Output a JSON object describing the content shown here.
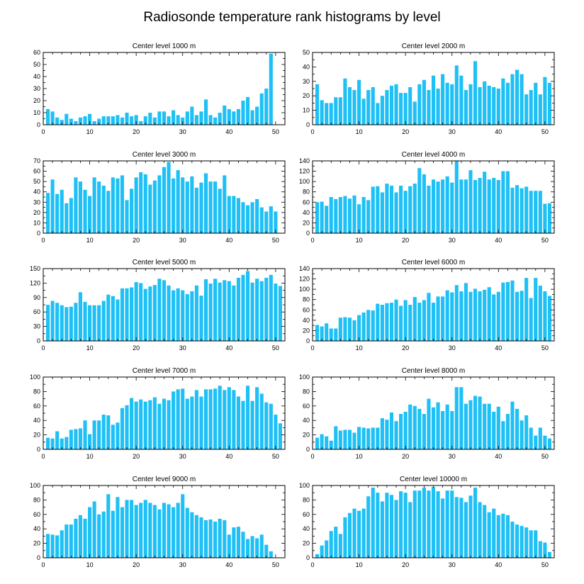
{
  "figure_title": "Radiosonde temperature rank histograms by level",
  "colors": {
    "bar": "#1ec0f5",
    "frame": "#000000"
  },
  "chart_data": [
    {
      "type": "bar",
      "title": "Center level 1000 m",
      "x_start": 1,
      "xlim": [
        0,
        52
      ],
      "xticks": [
        0,
        10,
        20,
        30,
        40,
        50
      ],
      "ylim": [
        0,
        60
      ],
      "yticks": [
        0,
        10,
        20,
        30,
        40,
        50,
        60
      ],
      "values": [
        13,
        11,
        6,
        4,
        9,
        5,
        3,
        6,
        7,
        9,
        3,
        5,
        7,
        7,
        7,
        8,
        6,
        10,
        7,
        8,
        3,
        7,
        10,
        6,
        11,
        11,
        7,
        12,
        8,
        6,
        11,
        15,
        8,
        11,
        21,
        8,
        6,
        10,
        16,
        13,
        11,
        13,
        20,
        23,
        12,
        15,
        26,
        30,
        59,
        0,
        0
      ]
    },
    {
      "type": "bar",
      "title": "Center level 2000 m",
      "x_start": 1,
      "xlim": [
        0,
        52
      ],
      "xticks": [
        0,
        10,
        20,
        30,
        40,
        50
      ],
      "ylim": [
        0,
        50
      ],
      "yticks": [
        0,
        10,
        20,
        30,
        40,
        50
      ],
      "values": [
        28,
        17,
        15,
        15,
        19,
        19,
        32,
        26,
        24,
        31,
        18,
        24,
        26,
        15,
        20,
        24,
        27,
        28,
        22,
        22,
        26,
        16,
        28,
        31,
        24,
        34,
        25,
        35,
        29,
        28,
        41,
        34,
        24,
        28,
        44,
        26,
        30,
        27,
        26,
        25,
        32,
        29,
        35,
        38,
        35,
        21,
        24,
        29,
        21,
        33,
        29
      ]
    },
    {
      "type": "bar",
      "title": "Center level 3000 m",
      "x_start": 1,
      "xlim": [
        0,
        52
      ],
      "xticks": [
        0,
        10,
        20,
        30,
        40,
        50
      ],
      "ylim": [
        0,
        70
      ],
      "yticks": [
        0,
        10,
        20,
        30,
        40,
        50,
        60,
        70
      ],
      "values": [
        39,
        52,
        38,
        42,
        29,
        34,
        54,
        50,
        42,
        36,
        54,
        50,
        46,
        41,
        54,
        53,
        56,
        32,
        43,
        54,
        59,
        57,
        47,
        51,
        56,
        64,
        69,
        53,
        61,
        54,
        50,
        55,
        44,
        49,
        58,
        50,
        50,
        43,
        56,
        36,
        36,
        34,
        30,
        27,
        30,
        33,
        25,
        21,
        26,
        21,
        0
      ]
    },
    {
      "type": "bar",
      "title": "Center level 4000 m",
      "x_start": 1,
      "xlim": [
        0,
        52
      ],
      "xticks": [
        0,
        10,
        20,
        30,
        40,
        50
      ],
      "ylim": [
        0,
        140
      ],
      "yticks": [
        0,
        20,
        40,
        60,
        80,
        100,
        120,
        140
      ],
      "values": [
        60,
        61,
        53,
        70,
        66,
        70,
        72,
        67,
        73,
        56,
        70,
        64,
        90,
        91,
        79,
        96,
        92,
        79,
        92,
        82,
        91,
        96,
        126,
        114,
        92,
        104,
        100,
        104,
        110,
        98,
        141,
        104,
        104,
        122,
        103,
        107,
        119,
        104,
        107,
        103,
        120,
        120,
        88,
        93,
        87,
        90,
        82,
        82,
        82,
        57,
        58
      ]
    },
    {
      "type": "bar",
      "title": "Center level 5000 m",
      "x_start": 1,
      "xlim": [
        0,
        52
      ],
      "xticks": [
        0,
        10,
        20,
        30,
        40,
        50
      ],
      "ylim": [
        0,
        150
      ],
      "yticks": [
        0,
        30,
        60,
        90,
        120,
        150
      ],
      "values": [
        75,
        83,
        79,
        74,
        70,
        71,
        79,
        101,
        81,
        74,
        74,
        74,
        83,
        96,
        93,
        86,
        109,
        109,
        111,
        122,
        120,
        108,
        113,
        116,
        129,
        126,
        115,
        105,
        109,
        105,
        97,
        103,
        115,
        94,
        128,
        119,
        129,
        121,
        126,
        124,
        115,
        131,
        137,
        145,
        121,
        129,
        124,
        131,
        137,
        119,
        114
      ]
    },
    {
      "type": "bar",
      "title": "Center level 6000 m",
      "x_start": 1,
      "xlim": [
        0,
        52
      ],
      "xticks": [
        0,
        10,
        20,
        30,
        40,
        50
      ],
      "ylim": [
        0,
        140
      ],
      "yticks": [
        0,
        20,
        40,
        60,
        80,
        100,
        120,
        140
      ],
      "values": [
        31,
        28,
        34,
        24,
        24,
        45,
        46,
        45,
        40,
        50,
        55,
        60,
        59,
        72,
        70,
        73,
        74,
        80,
        68,
        79,
        70,
        85,
        74,
        79,
        93,
        74,
        86,
        86,
        98,
        94,
        108,
        96,
        112,
        95,
        101,
        96,
        99,
        104,
        90,
        95,
        113,
        114,
        117,
        95,
        97,
        122,
        83,
        122,
        107,
        96,
        87
      ]
    },
    {
      "type": "bar",
      "title": "Center level 7000 m",
      "x_start": 1,
      "xlim": [
        0,
        52
      ],
      "xticks": [
        0,
        10,
        20,
        30,
        40,
        50
      ],
      "ylim": [
        0,
        100
      ],
      "yticks": [
        0,
        20,
        40,
        60,
        80,
        100
      ],
      "values": [
        16,
        15,
        25,
        15,
        17,
        27,
        28,
        29,
        40,
        21,
        40,
        40,
        48,
        47,
        34,
        37,
        57,
        61,
        71,
        66,
        69,
        66,
        68,
        72,
        63,
        70,
        68,
        80,
        83,
        84,
        70,
        73,
        82,
        73,
        83,
        83,
        84,
        88,
        82,
        86,
        82,
        73,
        67,
        88,
        67,
        86,
        77,
        65,
        63,
        48,
        36
      ]
    },
    {
      "type": "bar",
      "title": "Center level 8000 m",
      "x_start": 1,
      "xlim": [
        0,
        52
      ],
      "xticks": [
        0,
        10,
        20,
        30,
        40,
        50
      ],
      "ylim": [
        0,
        100
      ],
      "yticks": [
        0,
        20,
        40,
        60,
        80,
        100
      ],
      "values": [
        16,
        21,
        18,
        12,
        32,
        26,
        27,
        27,
        23,
        31,
        30,
        29,
        30,
        30,
        43,
        41,
        51,
        39,
        49,
        52,
        62,
        60,
        56,
        49,
        70,
        58,
        65,
        53,
        62,
        53,
        86,
        86,
        63,
        68,
        74,
        73,
        63,
        63,
        52,
        59,
        39,
        49,
        66,
        56,
        40,
        47,
        30,
        19,
        30,
        19,
        15
      ]
    },
    {
      "type": "bar",
      "title": "Center level 9000 m",
      "x_start": 1,
      "xlim": [
        0,
        52
      ],
      "xticks": [
        0,
        10,
        20,
        30,
        40,
        50
      ],
      "ylim": [
        0,
        100
      ],
      "yticks": [
        0,
        20,
        40,
        60,
        80,
        100
      ],
      "values": [
        33,
        32,
        31,
        38,
        46,
        46,
        54,
        59,
        54,
        70,
        78,
        60,
        64,
        88,
        65,
        84,
        70,
        80,
        80,
        73,
        76,
        80,
        76,
        73,
        67,
        76,
        74,
        70,
        76,
        88,
        69,
        63,
        59,
        56,
        52,
        53,
        50,
        54,
        52,
        32,
        42,
        43,
        36,
        26,
        30,
        27,
        32,
        18,
        9,
        0,
        0
      ]
    },
    {
      "type": "bar",
      "title": "Center level 10000 m",
      "x_start": 1,
      "xlim": [
        0,
        52
      ],
      "xticks": [
        0,
        10,
        20,
        30,
        40,
        50
      ],
      "ylim": [
        0,
        100
      ],
      "yticks": [
        0,
        20,
        40,
        60,
        80,
        100
      ],
      "values": [
        5,
        17,
        24,
        37,
        43,
        33,
        56,
        62,
        68,
        65,
        68,
        85,
        97,
        90,
        78,
        90,
        87,
        80,
        92,
        90,
        77,
        93,
        93,
        97,
        93,
        98,
        92,
        82,
        93,
        93,
        84,
        83,
        77,
        86,
        97,
        77,
        73,
        63,
        68,
        59,
        61,
        59,
        50,
        46,
        44,
        42,
        38,
        38,
        23,
        21,
        8
      ]
    }
  ]
}
